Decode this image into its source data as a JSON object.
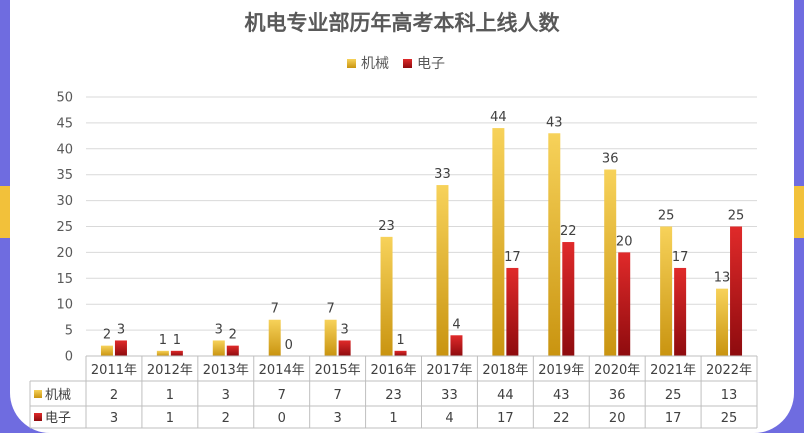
{
  "chart_data": {
    "type": "bar",
    "title": "机电专业部历年高考本科上线人数",
    "categories": [
      "2011年",
      "2012年",
      "2013年",
      "2014年",
      "2015年",
      "2016年",
      "2017年",
      "2018年",
      "2019年",
      "2020年",
      "2021年",
      "2022年"
    ],
    "series": [
      {
        "name": "机械",
        "values": [
          2,
          1,
          3,
          7,
          7,
          23,
          33,
          44,
          43,
          36,
          25,
          13
        ],
        "color": "#e8b92e"
      },
      {
        "name": "电子",
        "values": [
          3,
          1,
          2,
          0,
          3,
          1,
          4,
          17,
          22,
          20,
          17,
          25
        ],
        "color": "#c4161c"
      }
    ],
    "ylim": [
      0,
      50
    ],
    "yticks": [
      0,
      5,
      10,
      15,
      20,
      25,
      30,
      35,
      40,
      45,
      50
    ],
    "legend": "top-center",
    "data_table": true
  }
}
